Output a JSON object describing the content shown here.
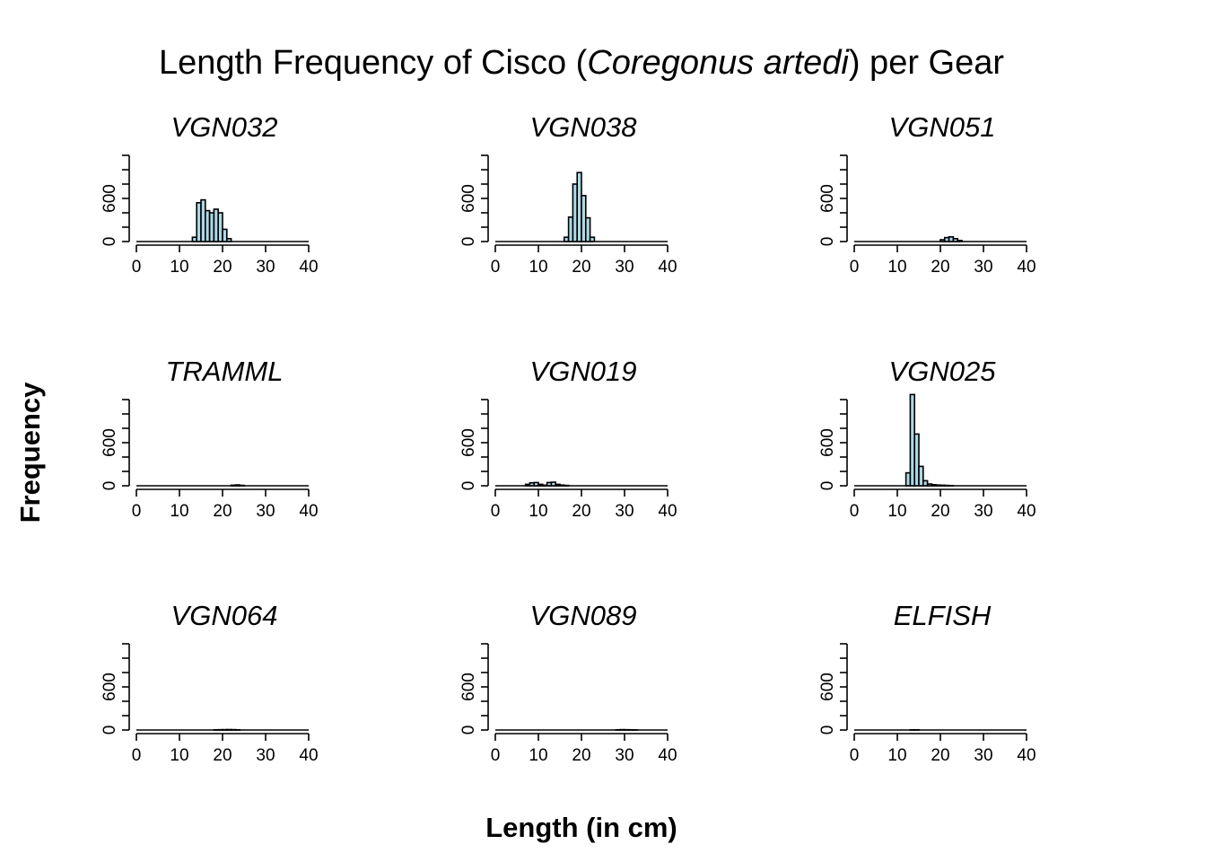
{
  "figure": {
    "title_pre": "Length Frequency of Cisco (",
    "title_species": "Coregonus artedi",
    "title_post": ") per Gear",
    "xlabel": "Length (in cm)",
    "ylabel": "Frequency"
  },
  "chart_data": [
    {
      "type": "bar",
      "title": "VGN032",
      "x_bin_edges": [
        13,
        14,
        15,
        16,
        17,
        18,
        19,
        20,
        21,
        22,
        23
      ],
      "values": [
        60,
        540,
        580,
        430,
        400,
        450,
        400,
        170,
        40,
        0
      ],
      "xlim": [
        0,
        40
      ],
      "ylim": [
        0,
        1200
      ],
      "xticks": [
        0,
        10,
        20,
        30,
        40
      ],
      "yticks": [
        0,
        200,
        400,
        600,
        800,
        1000,
        1200
      ],
      "ytick_labels": [
        "0",
        "600"
      ]
    },
    {
      "type": "bar",
      "title": "VGN038",
      "x_bin_edges": [
        16,
        17,
        18,
        19,
        20,
        21,
        22,
        23
      ],
      "values": [
        60,
        340,
        800,
        960,
        640,
        330,
        60
      ],
      "xlim": [
        0,
        40
      ],
      "ylim": [
        0,
        1200
      ],
      "xticks": [
        0,
        10,
        20,
        30,
        40
      ],
      "yticks": [
        0,
        200,
        400,
        600,
        800,
        1000,
        1200
      ],
      "ytick_labels": [
        "0",
        "600"
      ]
    },
    {
      "type": "bar",
      "title": "VGN051",
      "x_bin_edges": [
        20,
        21,
        22,
        23,
        24,
        25
      ],
      "values": [
        25,
        55,
        65,
        40,
        15
      ],
      "xlim": [
        0,
        40
      ],
      "ylim": [
        0,
        1200
      ],
      "xticks": [
        0,
        10,
        20,
        30,
        40
      ],
      "yticks": [
        0,
        200,
        400,
        600,
        800,
        1000,
        1200
      ],
      "ytick_labels": [
        "0",
        "600"
      ]
    },
    {
      "type": "bar",
      "title": "TRAMML",
      "x_bin_edges": [
        22,
        23,
        24,
        25
      ],
      "values": [
        8,
        12,
        6
      ],
      "xlim": [
        0,
        40
      ],
      "ylim": [
        0,
        1200
      ],
      "xticks": [
        0,
        10,
        20,
        30,
        40
      ],
      "yticks": [
        0,
        200,
        400,
        600,
        800,
        1000,
        1200
      ],
      "ytick_labels": [
        "0",
        "600"
      ]
    },
    {
      "type": "bar",
      "title": "VGN019",
      "x_bin_edges": [
        7,
        8,
        9,
        10,
        11,
        12,
        13,
        14,
        15,
        16,
        17
      ],
      "values": [
        20,
        40,
        45,
        20,
        8,
        45,
        50,
        20,
        10,
        5
      ],
      "xlim": [
        0,
        40
      ],
      "ylim": [
        0,
        1200
      ],
      "xticks": [
        0,
        10,
        20,
        30,
        40
      ],
      "yticks": [
        0,
        200,
        400,
        600,
        800,
        1000,
        1200
      ],
      "ytick_labels": [
        "0",
        "600"
      ]
    },
    {
      "type": "bar",
      "title": "VGN025",
      "x_bin_edges": [
        12,
        13,
        14,
        15,
        16,
        17,
        18,
        19,
        20,
        21,
        22,
        23
      ],
      "values": [
        180,
        1270,
        720,
        270,
        70,
        25,
        15,
        10,
        8,
        5,
        3
      ],
      "xlim": [
        0,
        40
      ],
      "ylim": [
        0,
        1200
      ],
      "xticks": [
        0,
        10,
        20,
        30,
        40
      ],
      "yticks": [
        0,
        200,
        400,
        600,
        800,
        1000,
        1200
      ],
      "ytick_labels": [
        "0",
        "600"
      ]
    },
    {
      "type": "bar",
      "title": "VGN064",
      "x_bin_edges": [
        18,
        19,
        20,
        21,
        22,
        23,
        24
      ],
      "values": [
        3,
        4,
        5,
        6,
        5,
        3
      ],
      "xlim": [
        0,
        40
      ],
      "ylim": [
        0,
        1200
      ],
      "xticks": [
        0,
        10,
        20,
        30,
        40
      ],
      "yticks": [
        0,
        200,
        400,
        600,
        800,
        1000,
        1200
      ],
      "ytick_labels": [
        "0",
        "600"
      ]
    },
    {
      "type": "bar",
      "title": "VGN089",
      "x_bin_edges": [
        28,
        29,
        30,
        31,
        32,
        33
      ],
      "values": [
        3,
        5,
        4,
        3,
        2
      ],
      "xlim": [
        0,
        40
      ],
      "ylim": [
        0,
        1200
      ],
      "xticks": [
        0,
        10,
        20,
        30,
        40
      ],
      "yticks": [
        0,
        200,
        400,
        600,
        800,
        1000,
        1200
      ],
      "ytick_labels": [
        "0",
        "600"
      ]
    },
    {
      "type": "bar",
      "title": "ELFISH",
      "x_bin_edges": [
        13,
        14,
        15
      ],
      "values": [
        2,
        3
      ],
      "xlim": [
        0,
        40
      ],
      "ylim": [
        0,
        1200
      ],
      "xticks": [
        0,
        10,
        20,
        30,
        40
      ],
      "yticks": [
        0,
        200,
        400,
        600,
        800,
        1000,
        1200
      ],
      "ytick_labels": [
        "0",
        "600"
      ]
    }
  ]
}
